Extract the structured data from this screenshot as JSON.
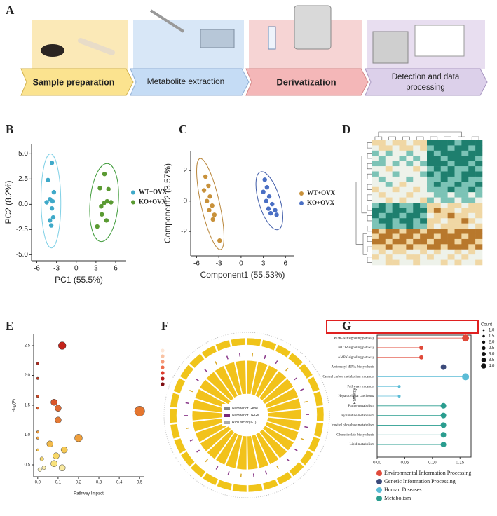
{
  "panel_labels": [
    "A",
    "B",
    "C",
    "D",
    "E",
    "F",
    "G"
  ],
  "workflow": {
    "steps": [
      "Sample preparation",
      "Metabolite extraction",
      "Derivatization",
      "Detection and data processing"
    ]
  },
  "chart_data": [
    {
      "type": "scatter",
      "xlabel": "PC1 (55.5%)",
      "ylabel": "PC2 (8.2%)",
      "xlim": [
        -6.8,
        7.6
      ],
      "xticks": [
        -6,
        -3,
        0,
        3,
        6
      ],
      "ylim": [
        -5.6,
        6
      ],
      "yticks": [
        {
          "value": -5,
          "label": "-5.0"
        },
        -2.5,
        {
          "value": 0,
          "label": "0.0"
        },
        2.5,
        {
          "value": 5,
          "label": "5.0"
        }
      ],
      "legend": "right",
      "ellipse": true,
      "series": [
        {
          "name": "WT+OVX",
          "color": "#3fa9c9",
          "ellipse_color": "#7fd0e6",
          "x": [
            -3.7,
            -4.3,
            -3.4,
            -4.0,
            -3.6,
            -4.5,
            -3.7,
            -3.5,
            -4.0,
            -3.8
          ],
          "values": [
            4.1,
            2.4,
            1.2,
            0.5,
            0.3,
            0.2,
            -0.4,
            -1.3,
            -1.6,
            -2.1
          ]
        },
        {
          "name": "KO+OVX",
          "color": "#5a9a32",
          "ellipse_color": "#3f9b3a",
          "x": [
            4.3,
            3.6,
            4.9,
            4.7,
            4.2,
            3.8,
            5.3,
            3.9,
            4.6,
            3.2
          ],
          "values": [
            3.0,
            1.6,
            1.5,
            0.3,
            0.1,
            -0.2,
            0.2,
            -1.0,
            -1.6,
            -2.2
          ]
        }
      ]
    },
    {
      "type": "scatter",
      "xlabel": "Component1 (55.53%)",
      "ylabel": "Component2 (3.57%)",
      "xlim": [
        -6.8,
        7.2
      ],
      "xticks": [
        -6,
        -3,
        0,
        3,
        6
      ],
      "ylim": [
        -3.6,
        3.3
      ],
      "yticks": [
        -2,
        0,
        2
      ],
      "legend": "right",
      "ellipse": true,
      "series": [
        {
          "name": "WT+OVX",
          "color": "#c8913a",
          "ellipse_color": "#b9863a",
          "x": [
            -4.8,
            -4.4,
            -5.0,
            -4.2,
            -4.6,
            -3.9,
            -4.3,
            -3.6,
            -3.8,
            -2.9
          ],
          "values": [
            1.6,
            1.0,
            0.7,
            0.3,
            0.0,
            -0.3,
            -0.6,
            -0.9,
            -1.2,
            -2.6
          ]
        },
        {
          "name": "KO+OVX",
          "color": "#4a6fc4",
          "ellipse_color": "#3d5aa8",
          "x": [
            3.2,
            3.5,
            3.0,
            3.8,
            3.4,
            4.2,
            3.7,
            4.6,
            4.0,
            4.8
          ],
          "values": [
            1.4,
            0.9,
            0.6,
            0.3,
            0.0,
            -0.2,
            -0.5,
            -0.6,
            -0.8,
            -0.9
          ]
        }
      ]
    },
    {
      "type": "heatmap",
      "zlim": [
        -2,
        2
      ],
      "colorscale": [
        "#1e7f6e",
        "#7cc3b6",
        "#eef2ea",
        "#f0d7a4",
        "#b8782c"
      ],
      "values": [
        [
          1,
          1,
          0,
          1,
          1,
          0,
          1,
          1,
          -2,
          -2,
          -2,
          -2,
          -1,
          -2,
          -2,
          -2
        ],
        [
          0,
          1,
          1,
          0,
          1,
          1,
          0,
          1,
          -1,
          -2,
          -2,
          -1,
          -2,
          -2,
          -1,
          -2
        ],
        [
          -1,
          0,
          -1,
          0,
          0,
          -1,
          0,
          0,
          -2,
          -1,
          -2,
          -2,
          -2,
          -1,
          -2,
          -2
        ],
        [
          0,
          -1,
          0,
          0,
          -1,
          0,
          -1,
          0,
          -2,
          -2,
          -1,
          -2,
          -2,
          -2,
          -2,
          -1
        ],
        [
          -1,
          -1,
          0,
          -1,
          0,
          -1,
          0,
          -1,
          -2,
          -2,
          -2,
          -1,
          -2,
          -2,
          -1,
          -2
        ],
        [
          0,
          0,
          1,
          0,
          0,
          0,
          1,
          0,
          -1,
          -2,
          -1,
          -2,
          -1,
          -1,
          -2,
          -1
        ],
        [
          -1,
          0,
          0,
          -1,
          0,
          0,
          0,
          -1,
          -2,
          -1,
          -2,
          -2,
          -1,
          -2,
          -2,
          -2
        ],
        [
          0,
          -1,
          0,
          0,
          0,
          -1,
          0,
          0,
          -1,
          -1,
          -2,
          -1,
          -1,
          -2,
          -1,
          -1
        ],
        [
          0,
          0,
          -1,
          0,
          1,
          0,
          0,
          0,
          -1,
          -2,
          -1,
          -1,
          -2,
          -1,
          -1,
          -2
        ],
        [
          1,
          0,
          0,
          1,
          0,
          0,
          1,
          0,
          -1,
          -1,
          -1,
          -2,
          -1,
          -1,
          -2,
          -1
        ],
        [
          0,
          1,
          0,
          0,
          0,
          1,
          0,
          0,
          0,
          -1,
          -1,
          0,
          -1,
          -1,
          0,
          -1
        ],
        [
          0,
          0,
          1,
          0,
          1,
          0,
          0,
          1,
          -1,
          0,
          -1,
          -1,
          0,
          -1,
          -1,
          0
        ],
        [
          -1,
          -2,
          -1,
          -2,
          -1,
          -1,
          -2,
          -1,
          1,
          1,
          0,
          1,
          1,
          0,
          1,
          1
        ],
        [
          -2,
          -2,
          -1,
          -2,
          -2,
          -1,
          -2,
          -2,
          1,
          2,
          1,
          1,
          0,
          1,
          1,
          1
        ],
        [
          -2,
          -1,
          -2,
          -2,
          -1,
          -2,
          -2,
          -1,
          0,
          1,
          1,
          2,
          1,
          1,
          0,
          1
        ],
        [
          -1,
          -2,
          -2,
          -1,
          -2,
          -2,
          -1,
          -2,
          1,
          1,
          0,
          1,
          1,
          2,
          1,
          0
        ],
        [
          -1,
          -1,
          -2,
          -1,
          -1,
          -2,
          -1,
          -1,
          1,
          0,
          1,
          1,
          1,
          1,
          0,
          1
        ],
        [
          2,
          1,
          2,
          2,
          1,
          2,
          2,
          1,
          2,
          2,
          2,
          1,
          2,
          2,
          2,
          2
        ],
        [
          1,
          2,
          2,
          1,
          2,
          2,
          1,
          2,
          2,
          1,
          2,
          2,
          2,
          1,
          2,
          2
        ],
        [
          2,
          2,
          1,
          2,
          2,
          1,
          2,
          2,
          1,
          2,
          2,
          2,
          1,
          2,
          2,
          1
        ],
        [
          1,
          1,
          2,
          1,
          1,
          2,
          1,
          1,
          2,
          2,
          1,
          2,
          2,
          2,
          1,
          2
        ],
        [
          0,
          1,
          0,
          1,
          1,
          0,
          0,
          1,
          0,
          1,
          0,
          0,
          1,
          0,
          1,
          0
        ],
        [
          1,
          0,
          1,
          0,
          0,
          1,
          1,
          0,
          1,
          0,
          0,
          1,
          0,
          1,
          0,
          0
        ],
        [
          0,
          0,
          1,
          1,
          0,
          0,
          1,
          0,
          0,
          0,
          1,
          0,
          1,
          0,
          0,
          1
        ]
      ]
    },
    {
      "type": "bubble",
      "xlabel": "Pathway Impact",
      "ylabel": "-log(P)",
      "xlim": [
        -0.02,
        0.52
      ],
      "xticks": [
        {
          "value": 0,
          "label": "0.0"
        },
        0.1,
        0.2,
        0.3,
        0.4,
        0.5
      ],
      "ylim": [
        0.3,
        2.7
      ],
      "yticks": [
        0.5,
        {
          "value": 1,
          "label": "1.0"
        },
        1.5,
        {
          "value": 2,
          "label": "2.0"
        },
        2.5
      ],
      "x": [
        0.12,
        0,
        0,
        0,
        0.08,
        0,
        0.1,
        0.1,
        0.5,
        0,
        0,
        0.2,
        0.06,
        0,
        0.13,
        0.02,
        0.09,
        0.08,
        0.12,
        0.03,
        0.01
      ],
      "values": [
        2.5,
        2.2,
        1.95,
        1.65,
        1.55,
        1.45,
        1.45,
        1.25,
        1.4,
        1.05,
        0.95,
        0.95,
        0.85,
        0.75,
        0.75,
        0.6,
        0.65,
        0.52,
        0.45,
        0.45,
        0.42
      ],
      "sizes": [
        6,
        2,
        2,
        2,
        5,
        2,
        5,
        5,
        8,
        2,
        2,
        6,
        5,
        2,
        5,
        3,
        5,
        5,
        5,
        3,
        3
      ],
      "colors": [
        "#c4231b",
        "#b22a1e",
        "#c63b22",
        "#cf4a27",
        "#d9562b",
        "#dc6030",
        "#e06a33",
        "#e47a36",
        "#e5762f",
        "#eb9a3e",
        "#eea345",
        "#ef9f3c",
        "#f3bb4c",
        "#f4c659",
        "#f5c854",
        "#f7d870",
        "#f7d766",
        "#f8e27d",
        "#faeaa0",
        "#fbeeb0",
        "#fcf3c2"
      ]
    },
    {
      "type": "circular",
      "legend": [
        "Number of Gene",
        "Number of DEGs",
        "Rich factor(0-1)"
      ]
    },
    {
      "type": "lollipop",
      "ylabel": "Pathway",
      "categories": [
        "PI3K-Akt signaling pathway",
        "mTOR signaling pathway",
        "AMPK signaling pathway",
        "Aminoacyl-tRNA biosynthesis",
        "Central carbon metabolism in cancer",
        "Pathways in cancer",
        "Hepatocellular carcinoma",
        "Purine metabolism",
        "Pyrimidine metabolism",
        "Inositol phosphate metabolism",
        "Glucosinolate biosynthesis",
        "Lipid metabolism"
      ],
      "values": [
        0.16,
        0.08,
        0.08,
        0.12,
        0.16,
        0.04,
        0.04,
        0.12,
        0.12,
        0.12,
        0.12,
        0.12
      ],
      "sizes": [
        4,
        2,
        2,
        3,
        4,
        1,
        1,
        3,
        3,
        3,
        3,
        3
      ],
      "colors": [
        "#e04a3a",
        "#e04a3a",
        "#e04a3a",
        "#3b4a7a",
        "#5bbcd6",
        "#5bbcd6",
        "#5bbcd6",
        "#2a9d8f",
        "#2a9d8f",
        "#2a9d8f",
        "#2a9d8f",
        "#2a9d8f"
      ],
      "xlim": [
        0,
        0.17
      ],
      "xticks": [
        {
          "value": 0,
          "label": "0.00"
        },
        0.05,
        {
          "value": 0.1,
          "label": "0.10"
        },
        0.15
      ],
      "size_legend": {
        "title": "Count",
        "values": [
          {
            "value": 1,
            "label": "1.0"
          },
          1.5,
          {
            "value": 2,
            "label": "2.0"
          },
          2.5,
          {
            "value": 3,
            "label": "3.0"
          },
          3.5,
          {
            "value": 4,
            "label": "4.0"
          }
        ]
      },
      "legend_items": [
        {
          "name": "Environmental Information Processing",
          "color": "#e04a3a"
        },
        {
          "name": "Genetic Information Processing",
          "color": "#3b4a7a"
        },
        {
          "name": "Human Diseases",
          "color": "#5bbcd6"
        },
        {
          "name": "Metabolism",
          "color": "#2a9d8f"
        }
      ]
    }
  ]
}
